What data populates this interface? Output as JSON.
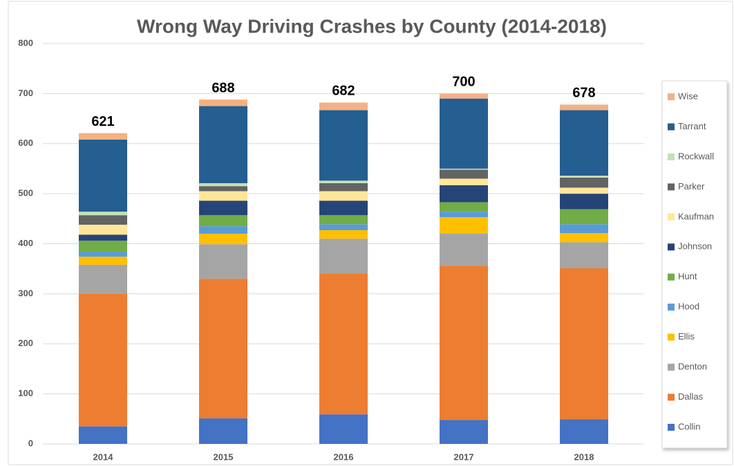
{
  "chart_data": {
    "type": "stacked_bar",
    "title": "Wrong Way Driving Crashes by County (2014-2018)",
    "categories": [
      "2014",
      "2015",
      "2016",
      "2017",
      "2018"
    ],
    "series": [
      {
        "name": "Collin",
        "color": "#4472c4",
        "values": [
          35,
          51,
          59,
          48,
          49
        ]
      },
      {
        "name": "Dallas",
        "color": "#ed7d31",
        "values": [
          265,
          279,
          282,
          308,
          302
        ]
      },
      {
        "name": "Denton",
        "color": "#a5a5a5",
        "values": [
          58,
          69,
          69,
          64,
          52
        ]
      },
      {
        "name": "Ellis",
        "color": "#ffc000",
        "values": [
          16,
          21,
          17,
          33,
          18
        ]
      },
      {
        "name": "Hood",
        "color": "#5b9bd5",
        "values": [
          10,
          15,
          12,
          11,
          18
        ]
      },
      {
        "name": "Hunt",
        "color": "#70ad47",
        "values": [
          22,
          22,
          18,
          19,
          30
        ]
      },
      {
        "name": "Johnson",
        "color": "#264478",
        "values": [
          12,
          29,
          29,
          34,
          31
        ]
      },
      {
        "name": "Kaufman",
        "color": "#ffe699",
        "values": [
          20,
          19,
          19,
          13,
          12
        ]
      },
      {
        "name": "Parker",
        "color": "#636363",
        "values": [
          19,
          10,
          16,
          18,
          20
        ]
      },
      {
        "name": "Rockwall",
        "color": "#c5e0b4",
        "values": [
          7,
          6,
          5,
          2,
          4
        ]
      },
      {
        "name": "Tarrant",
        "color": "#255e91",
        "values": [
          144,
          154,
          141,
          140,
          131
        ]
      },
      {
        "name": "Wise",
        "color": "#f4b183",
        "values": [
          13,
          13,
          15,
          10,
          11
        ]
      }
    ],
    "totals": [
      621,
      688,
      682,
      700,
      678
    ],
    "ylim": [
      0,
      800
    ],
    "yticks": [
      0,
      100,
      200,
      300,
      400,
      500,
      600,
      700,
      800
    ],
    "grid": true
  }
}
